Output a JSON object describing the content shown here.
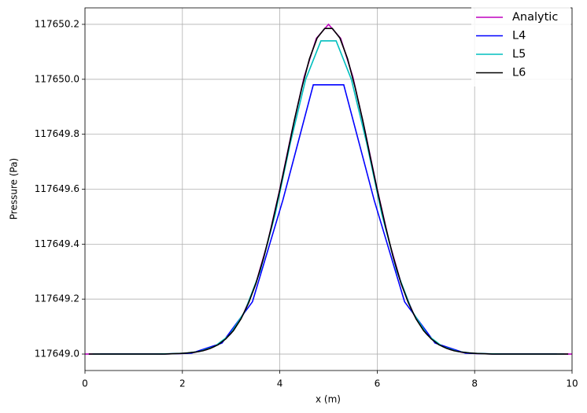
{
  "chart_data": {
    "type": "line",
    "xlabel": "x (m)",
    "ylabel": "Pressure (Pa)",
    "xlim": [
      0,
      10
    ],
    "xticks": [
      0,
      2,
      4,
      6,
      8,
      10
    ],
    "ylim": [
      117648.94,
      117650.26
    ],
    "yticks": [
      {
        "value": 117649,
        "label": "117649.0"
      },
      117649.2,
      117649.4,
      117649.6,
      117649.8,
      {
        "value": 117650,
        "label": "117650.0"
      },
      117650.2
    ],
    "grid": true,
    "legend": "upper right",
    "series": [
      {
        "name": "Analytic",
        "color": "#bf00bf",
        "x": [
          0,
          0.25,
          0.5,
          0.75,
          1,
          1.25,
          1.5,
          1.75,
          2,
          2.25,
          2.5,
          2.75,
          3,
          3.25,
          3.5,
          3.75,
          4,
          4.25,
          4.5,
          4.75,
          5,
          5.25,
          5.5,
          5.75,
          6,
          6.25,
          6.5,
          6.75,
          7,
          7.25,
          7.5,
          7.75,
          8,
          8.25,
          8.5,
          8.75,
          9,
          9.25,
          9.5,
          9.75,
          10
        ],
        "values": [
          117649,
          117649,
          117649,
          117649,
          117649,
          117649,
          117649,
          117649.001,
          117649.002,
          117649.006,
          117649.016,
          117649.036,
          117649.075,
          117649.144,
          117649.252,
          117649.406,
          117649.6,
          117649.812,
          117650.009,
          117650.149,
          117650.2,
          117650.149,
          117650.009,
          117649.812,
          117649.6,
          117649.406,
          117649.252,
          117649.144,
          117649.075,
          117649.036,
          117649.016,
          117649.006,
          117649.002,
          117649.001,
          117649,
          117649,
          117649,
          117649,
          117649,
          117649,
          117649
        ]
      },
      {
        "name": "L4",
        "color": "#0000ff",
        "x": [
          0.3125,
          0.9375,
          1.5625,
          2.1875,
          2.8125,
          3.4375,
          4.0625,
          4.6875,
          5.3125,
          5.9375,
          6.5625,
          7.1875,
          7.8125,
          8.4375,
          9.0625,
          9.6875
        ],
        "values": [
          117649,
          117649,
          117649,
          117649.003,
          117649.04,
          117649.19,
          117649.56,
          117649.98,
          117649.98,
          117649.56,
          117649.19,
          117649.04,
          117649.003,
          117649,
          117649,
          117649
        ]
      },
      {
        "name": "L5",
        "color": "#00bfbf",
        "x": [
          0.15625,
          0.46875,
          0.78125,
          1.09375,
          1.40625,
          1.71875,
          2.03125,
          2.34375,
          2.65625,
          2.96875,
          3.28125,
          3.59375,
          3.90625,
          4.21875,
          4.53125,
          4.84375,
          5.15625,
          5.46875,
          5.78125,
          6.09375,
          6.40625,
          6.71875,
          7.03125,
          7.34375,
          7.65625,
          7.96875,
          8.28125,
          8.59375,
          8.90625,
          9.21875,
          9.53125,
          9.84375
        ],
        "values": [
          117649,
          117649,
          117649,
          117649,
          117649,
          117649.001,
          117649.003,
          117649.009,
          117649.027,
          117649.069,
          117649.155,
          117649.3,
          117649.51,
          117649.77,
          117650,
          117650.14,
          117650.14,
          117650,
          117649.77,
          117649.51,
          117649.3,
          117649.155,
          117649.069,
          117649.027,
          117649.009,
          117649.003,
          117649.001,
          117649,
          117649,
          117649,
          117649,
          117649
        ]
      },
      {
        "name": "L6",
        "color": "#000000",
        "x": [
          0.078125,
          0.234375,
          0.390625,
          0.546875,
          0.703125,
          0.859375,
          1.015625,
          1.171875,
          1.328125,
          1.484375,
          1.640625,
          1.796875,
          1.953125,
          2.109375,
          2.265625,
          2.421875,
          2.578125,
          2.734375,
          2.890625,
          3.046875,
          3.203125,
          3.359375,
          3.515625,
          3.671875,
          3.828125,
          3.984375,
          4.140625,
          4.296875,
          4.453125,
          4.609375,
          4.765625,
          4.921875,
          5.078125,
          5.234375,
          5.390625,
          5.546875,
          5.703125,
          5.859375,
          6.015625,
          6.171875,
          6.328125,
          6.484375,
          6.640625,
          6.796875,
          6.953125,
          7.109375,
          7.265625,
          7.421875,
          7.578125,
          7.734375,
          7.890625,
          8.046875,
          8.203125,
          8.359375,
          8.515625,
          8.671875,
          8.828125,
          8.984375,
          9.140625,
          9.296875,
          9.453125,
          9.609375,
          9.765625,
          9.921875
        ],
        "values": [
          117649,
          117649,
          117649,
          117649,
          117649,
          117649,
          117649,
          117649,
          117649,
          117649,
          117649,
          117649.001,
          117649.002,
          117649.004,
          117649.007,
          117649.012,
          117649.021,
          117649.034,
          117649.055,
          117649.085,
          117649.128,
          117649.186,
          117649.26,
          117649.353,
          117649.463,
          117649.585,
          117649.715,
          117649.85,
          117649.97,
          117650.075,
          117650.15,
          117650.185,
          117650.185,
          117650.15,
          117650.075,
          117649.97,
          117649.85,
          117649.715,
          117649.585,
          117649.463,
          117649.353,
          117649.26,
          117649.186,
          117649.128,
          117649.085,
          117649.055,
          117649.034,
          117649.021,
          117649.012,
          117649.007,
          117649.004,
          117649.002,
          117649.001,
          117649,
          117649,
          117649,
          117649,
          117649,
          117649,
          117649,
          117649,
          117649,
          117649,
          117649
        ]
      }
    ]
  }
}
